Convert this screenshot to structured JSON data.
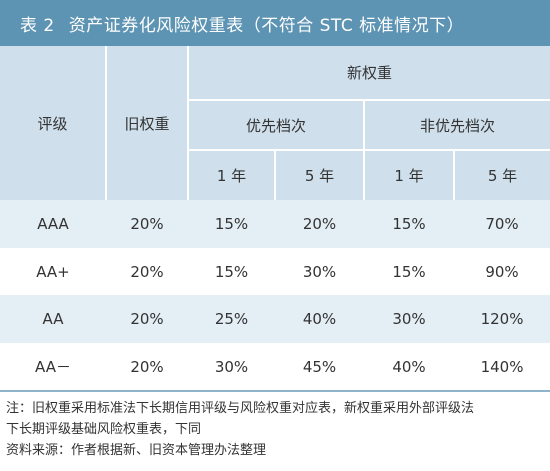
{
  "title": {
    "number": "表 2",
    "text": "资产证券化风险权重表（不符合 STC 标准情况下）"
  },
  "header": {
    "rating": "评级",
    "old_weight": "旧权重",
    "new_weight": "新权重",
    "senior": "优先档次",
    "non_senior": "非优先档次",
    "y1": "1 年",
    "y5": "5 年"
  },
  "rows": [
    {
      "rating": "AAA",
      "old": "20%",
      "s1": "15%",
      "s5": "20%",
      "n1": "15%",
      "n5": "70%"
    },
    {
      "rating": "AA+",
      "old": "20%",
      "s1": "15%",
      "s5": "30%",
      "n1": "15%",
      "n5": "90%"
    },
    {
      "rating": "AA",
      "old": "20%",
      "s1": "25%",
      "s5": "40%",
      "n1": "30%",
      "n5": "120%"
    },
    {
      "rating": "AA－",
      "old": "20%",
      "s1": "30%",
      "s5": "45%",
      "n1": "40%",
      "n5": "140%"
    }
  ],
  "notes": {
    "note_line1": "注：旧权重采用标准法下长期信用评级与风险权重对应表，新权重采用外部评级法",
    "note_line2": "下长期评级基础风险权重表，下同",
    "source": "资料来源：作者根据新、旧资本管理办法整理"
  }
}
